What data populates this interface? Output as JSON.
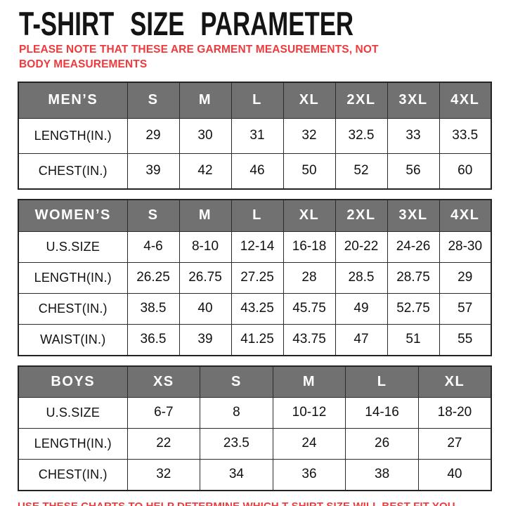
{
  "page": {
    "title": "T-SHIRT SIZE PARAMETER",
    "note": "PLEASE NOTE THAT THESE ARE GARMENT MEASUREMENTS, NOT BODY MEASUREMENTS",
    "footer": "USE THESE CHARTS TO HELP DETERMINE WHICH T-SHIRT SIZE WILL BEST FIT YOU.",
    "colors": {
      "accent_red": "#ee3a3c",
      "header_gray": "#717171",
      "border_dark": "#2b2b2b",
      "title_black": "#141414"
    }
  },
  "chart_data": [
    {
      "type": "table",
      "title": "MEN’S",
      "header": [
        "MEN’S",
        "S",
        "M",
        "L",
        "XL",
        "2XL",
        "3XL",
        "4XL"
      ],
      "rows": [
        [
          "LENGTH(IN.)",
          "29",
          "30",
          "31",
          "32",
          "32.5",
          "33",
          "33.5"
        ],
        [
          "CHEST(IN.)",
          "39",
          "42",
          "46",
          "50",
          "52",
          "56",
          "60"
        ]
      ]
    },
    {
      "type": "table",
      "title": "WOMEN’S",
      "header": [
        "WOMEN’S",
        "S",
        "M",
        "L",
        "XL",
        "2XL",
        "3XL",
        "4XL"
      ],
      "rows": [
        [
          "U.S.SIZE",
          "4-6",
          "8-10",
          "12-14",
          "16-18",
          "20-22",
          "24-26",
          "28-30"
        ],
        [
          "LENGTH(IN.)",
          "26.25",
          "26.75",
          "27.25",
          "28",
          "28.5",
          "28.75",
          "29"
        ],
        [
          "CHEST(IN.)",
          "38.5",
          "40",
          "43.25",
          "45.75",
          "49",
          "52.75",
          "57"
        ],
        [
          "WAIST(IN.)",
          "36.5",
          "39",
          "41.25",
          "43.75",
          "47",
          "51",
          "55"
        ]
      ]
    },
    {
      "type": "table",
      "title": "BOYS",
      "header": [
        "BOYS",
        "XS",
        "S",
        "M",
        "L",
        "XL"
      ],
      "rows": [
        [
          "U.S.SIZE",
          "6-7",
          "8",
          "10-12",
          "14-16",
          "18-20"
        ],
        [
          "LENGTH(IN.)",
          "22",
          "23.5",
          "24",
          "26",
          "27"
        ],
        [
          "CHEST(IN.)",
          "32",
          "34",
          "36",
          "38",
          "40"
        ]
      ]
    }
  ]
}
